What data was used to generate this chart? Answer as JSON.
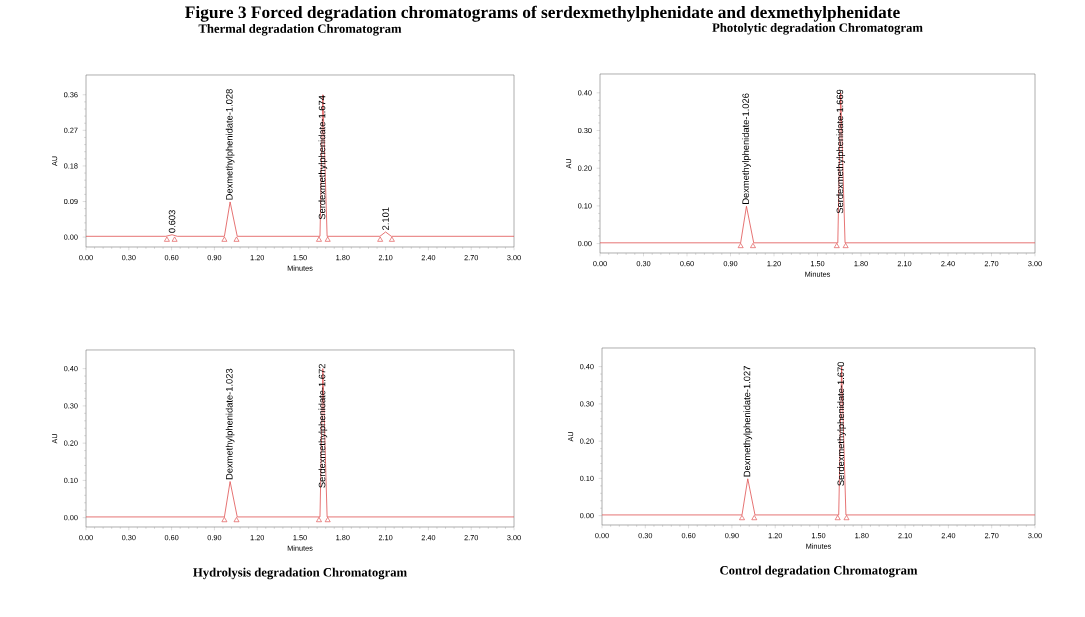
{
  "chart_data": [
    {
      "type": "other",
      "title": "Figure 3 Forced degradation chromatograms of serdexmethylphenidate and dexmethylphenidate"
    },
    {
      "type": "line",
      "title": "Thermal degradation Chromatogram",
      "xlabel": "Minutes",
      "ylabel": "AU",
      "xlim": [
        0,
        3
      ],
      "ylim": [
        -0.025,
        0.41
      ],
      "xticks": [
        {
          "value": 0,
          "label": "0.00"
        },
        {
          "value": 0.3,
          "label": "0.30"
        },
        {
          "value": 0.6,
          "label": "0.60"
        },
        {
          "value": 0.9,
          "label": "0.90"
        },
        {
          "value": 1.2,
          "label": "1.20"
        },
        {
          "value": 1.5,
          "label": "1.50"
        },
        {
          "value": 1.8,
          "label": "1.80"
        },
        {
          "value": 2.1,
          "label": "2.10"
        },
        {
          "value": 2.4,
          "label": "2.40"
        },
        {
          "value": 2.7,
          "label": "2.70"
        },
        {
          "value": 3,
          "label": "3.00"
        }
      ],
      "yticks": [
        {
          "value": 0,
          "label": "0.00"
        },
        {
          "value": 0.09,
          "label": "0.09"
        },
        {
          "value": 0.18,
          "label": "0.18"
        },
        {
          "value": 0.27,
          "label": "0.27"
        },
        {
          "value": 0.36,
          "label": "0.36"
        }
      ],
      "grid": false,
      "series": [
        {
          "type": "line",
          "color": "#e05050",
          "marker": "none",
          "line_style": "solid",
          "x": [
            0,
            0.56,
            0.603,
            0.64,
            0.97,
            1.01,
            1.06,
            1.64,
            1.66,
            1.69,
            2.06,
            2.1,
            2.14,
            3
          ],
          "values": [
            0.002,
            0.002,
            0.006,
            0.002,
            0.002,
            0.089,
            0.002,
            0.002,
            0.36,
            0.002,
            0.002,
            0.013,
            0.002,
            0.002
          ]
        },
        {
          "type": "scatter",
          "color": "#e05050",
          "marker": "triangle",
          "x": [
            0.567,
            0.621,
            0.97,
            1.055,
            1.633,
            1.694,
            2.062,
            2.144
          ],
          "values": [
            -0.007,
            -0.007,
            -0.007,
            -0.007,
            -0.007,
            -0.007,
            -0.007,
            -0.007
          ]
        }
      ],
      "annotations": [
        {
          "text": "0.603",
          "x": 0.603,
          "y": 0.006
        },
        {
          "text": "Dexmethylphenidate-1.028",
          "x": 1.01,
          "y": 0.089
        },
        {
          "text": "Serdexmethylphenidate-1.674",
          "x": 1.66,
          "y": 0.04
        },
        {
          "text": "2.101",
          "x": 2.1,
          "y": 0.013
        }
      ]
    },
    {
      "type": "line",
      "title": "Photolytic degradation Chromatogram",
      "xlabel": "Minutes",
      "ylabel": "AU",
      "xlim": [
        0,
        3
      ],
      "ylim": [
        -0.025,
        0.45
      ],
      "xticks": [
        {
          "value": 0,
          "label": "0.00"
        },
        {
          "value": 0.3,
          "label": "0.30"
        },
        {
          "value": 0.6,
          "label": "0.60"
        },
        {
          "value": 0.9,
          "label": "0.90"
        },
        {
          "value": 1.2,
          "label": "1.20"
        },
        {
          "value": 1.5,
          "label": "1.50"
        },
        {
          "value": 1.8,
          "label": "1.80"
        },
        {
          "value": 2.1,
          "label": "2.10"
        },
        {
          "value": 2.4,
          "label": "2.40"
        },
        {
          "value": 2.7,
          "label": "2.70"
        },
        {
          "value": 3,
          "label": "3.00"
        }
      ],
      "yticks": [
        {
          "value": 0,
          "label": "0.00"
        },
        {
          "value": 0.1,
          "label": "0.10"
        },
        {
          "value": 0.2,
          "label": "0.20"
        },
        {
          "value": 0.3,
          "label": "0.30"
        },
        {
          "value": 0.4,
          "label": "0.40"
        }
      ],
      "grid": false,
      "series": [
        {
          "type": "line",
          "color": "#e05050",
          "marker": "none",
          "line_style": "solid",
          "x": [
            0,
            0.97,
            1.01,
            1.06,
            1.64,
            1.66,
            1.69,
            3
          ],
          "values": [
            0.002,
            0.002,
            0.099,
            0.002,
            0.002,
            0.4,
            0.002,
            0.002
          ]
        },
        {
          "type": "scatter",
          "color": "#e05050",
          "marker": "triangle",
          "x": [
            0.97,
            1.055,
            1.633,
            1.694
          ],
          "values": [
            -0.007,
            -0.007,
            -0.007,
            -0.007
          ]
        }
      ],
      "annotations": [
        {
          "text": "Dexmethylphenidate-1.026",
          "x": 1.01,
          "y": 0.099
        },
        {
          "text": "Serdexmethylphenidate-1.669",
          "x": 1.66,
          "y": 0.075
        }
      ]
    },
    {
      "type": "line",
      "title": "Hydrolysis degradation Chromatogram",
      "xlabel": "Minutes",
      "ylabel": "AU",
      "xlim": [
        0,
        3
      ],
      "ylim": [
        -0.025,
        0.45
      ],
      "xticks": [
        {
          "value": 0,
          "label": "0.00"
        },
        {
          "value": 0.3,
          "label": "0.30"
        },
        {
          "value": 0.6,
          "label": "0.60"
        },
        {
          "value": 0.9,
          "label": "0.90"
        },
        {
          "value": 1.2,
          "label": "1.20"
        },
        {
          "value": 1.5,
          "label": "1.50"
        },
        {
          "value": 1.8,
          "label": "1.80"
        },
        {
          "value": 2.1,
          "label": "2.10"
        },
        {
          "value": 2.4,
          "label": "2.40"
        },
        {
          "value": 2.7,
          "label": "2.70"
        },
        {
          "value": 3,
          "label": "3.00"
        }
      ],
      "yticks": [
        {
          "value": 0,
          "label": "0.00"
        },
        {
          "value": 0.1,
          "label": "0.10"
        },
        {
          "value": 0.2,
          "label": "0.20"
        },
        {
          "value": 0.3,
          "label": "0.30"
        },
        {
          "value": 0.4,
          "label": "0.40"
        }
      ],
      "grid": false,
      "series": [
        {
          "type": "line",
          "color": "#e05050",
          "marker": "none",
          "line_style": "solid",
          "x": [
            0,
            0.97,
            1.01,
            1.06,
            1.64,
            1.66,
            1.69,
            3
          ],
          "values": [
            0.002,
            0.002,
            0.097,
            0.002,
            0.002,
            0.4,
            0.002,
            0.002
          ]
        },
        {
          "type": "scatter",
          "color": "#e05050",
          "marker": "triangle",
          "x": [
            0.97,
            1.055,
            1.633,
            1.694
          ],
          "values": [
            -0.007,
            -0.007,
            -0.007,
            -0.007
          ]
        }
      ],
      "annotations": [
        {
          "text": "Dexmethylphenidate-1.023",
          "x": 1.01,
          "y": 0.097
        },
        {
          "text": "Serdexmethylphenidate-1.672",
          "x": 1.66,
          "y": 0.075
        }
      ]
    },
    {
      "type": "line",
      "title": "Control degradation Chromatogram",
      "xlabel": "Minutes",
      "ylabel": "AU",
      "xlim": [
        0,
        3
      ],
      "ylim": [
        -0.025,
        0.45
      ],
      "xticks": [
        {
          "value": 0,
          "label": "0.00"
        },
        {
          "value": 0.3,
          "label": "0.30"
        },
        {
          "value": 0.6,
          "label": "0.60"
        },
        {
          "value": 0.9,
          "label": "0.90"
        },
        {
          "value": 1.2,
          "label": "1.20"
        },
        {
          "value": 1.5,
          "label": "1.50"
        },
        {
          "value": 1.8,
          "label": "1.80"
        },
        {
          "value": 2.1,
          "label": "2.10"
        },
        {
          "value": 2.4,
          "label": "2.40"
        },
        {
          "value": 2.7,
          "label": "2.70"
        },
        {
          "value": 3,
          "label": "3.00"
        }
      ],
      "yticks": [
        {
          "value": 0,
          "label": "0.00"
        },
        {
          "value": 0.1,
          "label": "0.10"
        },
        {
          "value": 0.2,
          "label": "0.20"
        },
        {
          "value": 0.3,
          "label": "0.30"
        },
        {
          "value": 0.4,
          "label": "0.40"
        }
      ],
      "grid": false,
      "series": [
        {
          "type": "line",
          "color": "#e05050",
          "marker": "none",
          "line_style": "solid",
          "x": [
            0,
            0.97,
            1.01,
            1.06,
            1.64,
            1.66,
            1.69,
            3
          ],
          "values": [
            0.002,
            0.002,
            0.099,
            0.002,
            0.002,
            0.4,
            0.002,
            0.002
          ]
        },
        {
          "type": "scatter",
          "color": "#e05050",
          "marker": "triangle",
          "x": [
            0.97,
            1.055,
            1.633,
            1.694
          ],
          "values": [
            -0.007,
            -0.007,
            -0.007,
            -0.007
          ]
        }
      ],
      "annotations": [
        {
          "text": "Dexmethylphenidate-1.027",
          "x": 1.01,
          "y": 0.099
        },
        {
          "text": "Serdexmethylphenidate-1.670",
          "x": 1.66,
          "y": 0.075
        }
      ]
    }
  ]
}
